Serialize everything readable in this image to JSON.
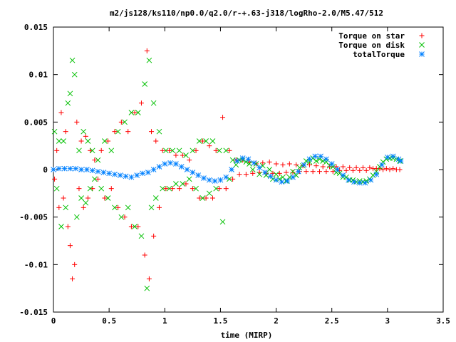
{
  "chart_data": {
    "type": "scatter",
    "title": "m2/js128/ks110/np0.0/q2.0/r-+.63-j318/logRho-2.0/M5.47/512",
    "xlabel": "time (MIRP)",
    "ylabel": "",
    "xlim": [
      0,
      3.5
    ],
    "ylim": [
      -0.015,
      0.015
    ],
    "x_ticks": [
      "0",
      "0.5",
      "1",
      "1.5",
      "2",
      "2.5",
      "3",
      "3.5"
    ],
    "y_ticks": [
      "-0.015",
      "-0.01",
      "-0.005",
      "0",
      "0.005",
      "0.01",
      "0.015"
    ],
    "grid": false,
    "legend_position": "top-right",
    "series": [
      {
        "name": "Torque on star",
        "marker": "plus",
        "color": "#ff0000",
        "points": [
          [
            0.01,
            -0.001
          ],
          [
            0.03,
            0.002
          ],
          [
            0.05,
            -0.004
          ],
          [
            0.07,
            0.006
          ],
          [
            0.09,
            -0.003
          ],
          [
            0.11,
            0.004
          ],
          [
            0.13,
            -0.006
          ],
          [
            0.15,
            -0.008
          ],
          [
            0.17,
            -0.0115
          ],
          [
            0.19,
            -0.01
          ],
          [
            0.21,
            0.005
          ],
          [
            0.23,
            -0.002
          ],
          [
            0.25,
            0.003
          ],
          [
            0.27,
            -0.004
          ],
          [
            0.29,
            0.0035
          ],
          [
            0.31,
            -0.003
          ],
          [
            0.33,
            0.002
          ],
          [
            0.35,
            -0.002
          ],
          [
            0.37,
            0.001
          ],
          [
            0.4,
            -0.001
          ],
          [
            0.43,
            0.002
          ],
          [
            0.46,
            -0.003
          ],
          [
            0.49,
            0.003
          ],
          [
            0.52,
            -0.002
          ],
          [
            0.55,
            0.004
          ],
          [
            0.58,
            -0.004
          ],
          [
            0.61,
            0.005
          ],
          [
            0.64,
            -0.005
          ],
          [
            0.67,
            0.004
          ],
          [
            0.7,
            -0.006
          ],
          [
            0.73,
            0.006
          ],
          [
            0.76,
            -0.006
          ],
          [
            0.79,
            0.007
          ],
          [
            0.82,
            -0.009
          ],
          [
            0.84,
            0.0125
          ],
          [
            0.86,
            -0.0115
          ],
          [
            0.88,
            0.004
          ],
          [
            0.9,
            -0.007
          ],
          [
            0.92,
            0.003
          ],
          [
            0.95,
            -0.004
          ],
          [
            0.98,
            0.002
          ],
          [
            1.01,
            -0.002
          ],
          [
            1.04,
            0.002
          ],
          [
            1.07,
            -0.002
          ],
          [
            1.1,
            0.0015
          ],
          [
            1.13,
            -0.002
          ],
          [
            1.16,
            0.0015
          ],
          [
            1.19,
            -0.0015
          ],
          [
            1.22,
            0.001
          ],
          [
            1.25,
            -0.002
          ],
          [
            1.28,
            0.002
          ],
          [
            1.31,
            -0.003
          ],
          [
            1.34,
            0.003
          ],
          [
            1.37,
            -0.003
          ],
          [
            1.4,
            0.0025
          ],
          [
            1.43,
            -0.003
          ],
          [
            1.46,
            0.002
          ],
          [
            1.49,
            -0.002
          ],
          [
            1.52,
            0.0055
          ],
          [
            1.55,
            -0.002
          ],
          [
            1.58,
            0.002
          ],
          [
            1.61,
            -0.001
          ],
          [
            1.64,
            0.001
          ],
          [
            1.67,
            -0.0005
          ],
          [
            1.7,
            0.001
          ],
          [
            1.73,
            -0.0005
          ],
          [
            1.76,
            0.0008
          ],
          [
            1.79,
            -0.0004
          ],
          [
            1.82,
            0.0006
          ],
          [
            1.85,
            -0.0003
          ],
          [
            1.88,
            0.0007
          ],
          [
            1.91,
            -0.0004
          ],
          [
            1.94,
            0.0008
          ],
          [
            1.97,
            -0.0004
          ],
          [
            2.0,
            0.0006
          ],
          [
            2.03,
            -0.0004
          ],
          [
            2.06,
            0.0005
          ],
          [
            2.09,
            -0.0003
          ],
          [
            2.12,
            0.0006
          ],
          [
            2.15,
            -0.0003
          ],
          [
            2.18,
            0.0005
          ],
          [
            2.21,
            -0.0002
          ],
          [
            2.24,
            0.0004
          ],
          [
            2.27,
            -0.0002
          ],
          [
            2.3,
            0.0005
          ],
          [
            2.33,
            -0.0002
          ],
          [
            2.36,
            0.0004
          ],
          [
            2.39,
            -0.0002
          ],
          [
            2.42,
            0.0003
          ],
          [
            2.45,
            -0.0002
          ],
          [
            2.48,
            0.0003
          ],
          [
            2.51,
            -0.0002
          ],
          [
            2.54,
            0.0003
          ],
          [
            2.57,
            -0.0001
          ],
          [
            2.6,
            0.0003
          ],
          [
            2.63,
            -0.0001
          ],
          [
            2.66,
            0.0002
          ],
          [
            2.69,
            -0.0001
          ],
          [
            2.72,
            0.0002
          ],
          [
            2.75,
            -0.0001
          ],
          [
            2.78,
            0.0002
          ],
          [
            2.81,
            -0.0001
          ],
          [
            2.84,
            0.0002
          ],
          [
            2.87,
            0.0001
          ],
          [
            2.9,
            0.0001
          ],
          [
            2.93,
            0.0001
          ],
          [
            2.96,
            0.0
          ],
          [
            2.99,
            0.0001
          ],
          [
            3.02,
            0.0
          ],
          [
            3.05,
            0.0001
          ],
          [
            3.08,
            0.0
          ],
          [
            3.11,
            0.0
          ]
        ]
      },
      {
        "name": "Torque on disk",
        "marker": "cross",
        "color": "#00c000",
        "points": [
          [
            0.01,
            0.004
          ],
          [
            0.03,
            -0.002
          ],
          [
            0.05,
            0.003
          ],
          [
            0.07,
            -0.006
          ],
          [
            0.09,
            0.003
          ],
          [
            0.11,
            -0.004
          ],
          [
            0.13,
            0.007
          ],
          [
            0.15,
            0.008
          ],
          [
            0.17,
            0.0115
          ],
          [
            0.19,
            0.01
          ],
          [
            0.21,
            -0.005
          ],
          [
            0.23,
            0.002
          ],
          [
            0.25,
            -0.003
          ],
          [
            0.27,
            0.004
          ],
          [
            0.29,
            -0.0035
          ],
          [
            0.31,
            0.003
          ],
          [
            0.33,
            -0.002
          ],
          [
            0.35,
            0.002
          ],
          [
            0.37,
            -0.001
          ],
          [
            0.4,
            0.001
          ],
          [
            0.43,
            -0.002
          ],
          [
            0.46,
            0.003
          ],
          [
            0.49,
            -0.003
          ],
          [
            0.52,
            0.002
          ],
          [
            0.55,
            -0.004
          ],
          [
            0.58,
            0.004
          ],
          [
            0.61,
            -0.005
          ],
          [
            0.64,
            0.005
          ],
          [
            0.67,
            -0.004
          ],
          [
            0.7,
            0.006
          ],
          [
            0.73,
            -0.006
          ],
          [
            0.76,
            0.006
          ],
          [
            0.79,
            -0.007
          ],
          [
            0.82,
            0.009
          ],
          [
            0.84,
            -0.0125
          ],
          [
            0.86,
            0.0115
          ],
          [
            0.88,
            -0.004
          ],
          [
            0.9,
            0.007
          ],
          [
            0.92,
            -0.003
          ],
          [
            0.95,
            0.004
          ],
          [
            0.98,
            -0.002
          ],
          [
            1.01,
            0.002
          ],
          [
            1.04,
            -0.002
          ],
          [
            1.07,
            0.002
          ],
          [
            1.1,
            -0.0015
          ],
          [
            1.13,
            0.002
          ],
          [
            1.16,
            -0.0015
          ],
          [
            1.19,
            0.0015
          ],
          [
            1.22,
            -0.001
          ],
          [
            1.25,
            0.002
          ],
          [
            1.28,
            -0.002
          ],
          [
            1.31,
            0.003
          ],
          [
            1.34,
            -0.003
          ],
          [
            1.37,
            0.003
          ],
          [
            1.4,
            -0.0025
          ],
          [
            1.43,
            0.003
          ],
          [
            1.46,
            -0.002
          ],
          [
            1.49,
            0.002
          ],
          [
            1.52,
            -0.0055
          ],
          [
            1.55,
            0.002
          ],
          [
            1.58,
            -0.001
          ],
          [
            1.61,
            0.001
          ],
          [
            1.64,
            0.0005
          ],
          [
            1.67,
            0.001
          ],
          [
            1.7,
            0.001
          ],
          [
            1.73,
            0.0008
          ],
          [
            1.76,
            0.0006
          ],
          [
            1.79,
            0.0
          ],
          [
            1.82,
            0.0006
          ],
          [
            1.85,
            -0.0005
          ],
          [
            1.88,
            0.0004
          ],
          [
            1.91,
            -0.0006
          ],
          [
            1.94,
            0.0
          ],
          [
            1.97,
            -0.001
          ],
          [
            2.0,
            -0.0005
          ],
          [
            2.03,
            -0.001
          ],
          [
            2.06,
            -0.0008
          ],
          [
            2.09,
            -0.0012
          ],
          [
            2.12,
            -0.0008
          ],
          [
            2.15,
            -0.0002
          ],
          [
            2.18,
            -0.0006
          ],
          [
            2.21,
            0.0002
          ],
          [
            2.24,
            0.0004
          ],
          [
            2.27,
            0.0009
          ],
          [
            2.3,
            0.0008
          ],
          [
            2.33,
            0.0012
          ],
          [
            2.36,
            0.0009
          ],
          [
            2.39,
            0.0011
          ],
          [
            2.42,
            0.0009
          ],
          [
            2.45,
            0.0008
          ],
          [
            2.48,
            0.0004
          ],
          [
            2.51,
            0.0003
          ],
          [
            2.54,
            -0.0003
          ],
          [
            2.57,
            -0.0004
          ],
          [
            2.6,
            -0.0008
          ],
          [
            2.63,
            -0.0008
          ],
          [
            2.66,
            -0.0011
          ],
          [
            2.69,
            -0.0011
          ],
          [
            2.72,
            -0.0013
          ],
          [
            2.75,
            -0.0012
          ],
          [
            2.78,
            -0.0013
          ],
          [
            2.81,
            -0.0012
          ],
          [
            2.84,
            -0.001
          ],
          [
            2.87,
            -0.0006
          ],
          [
            2.9,
            -0.0002
          ],
          [
            2.93,
            0.0003
          ],
          [
            2.96,
            0.0008
          ],
          [
            2.99,
            0.0011
          ],
          [
            3.02,
            0.0012
          ],
          [
            3.05,
            0.0012
          ],
          [
            3.08,
            0.0011
          ],
          [
            3.11,
            0.0009
          ]
        ]
      },
      {
        "name": "totalTorque",
        "marker": "star",
        "color": "#0080ff",
        "points": [
          [
            0.0,
            0.0
          ],
          [
            0.05,
            0.0001
          ],
          [
            0.1,
            0.0001
          ],
          [
            0.15,
            0.0001
          ],
          [
            0.2,
            0.0001
          ],
          [
            0.25,
            0.0
          ],
          [
            0.3,
            0.0
          ],
          [
            0.35,
            -0.0001
          ],
          [
            0.4,
            -0.0002
          ],
          [
            0.45,
            -0.0003
          ],
          [
            0.5,
            -0.0004
          ],
          [
            0.55,
            -0.0005
          ],
          [
            0.6,
            -0.0006
          ],
          [
            0.65,
            -0.0007
          ],
          [
            0.7,
            -0.0008
          ],
          [
            0.75,
            -0.0006
          ],
          [
            0.8,
            -0.0004
          ],
          [
            0.85,
            -0.0003
          ],
          [
            0.9,
            0.0
          ],
          [
            0.95,
            0.0003
          ],
          [
            1.0,
            0.0006
          ],
          [
            1.05,
            0.0007
          ],
          [
            1.1,
            0.0006
          ],
          [
            1.15,
            0.0003
          ],
          [
            1.2,
            0.0
          ],
          [
            1.25,
            -0.0003
          ],
          [
            1.3,
            -0.0006
          ],
          [
            1.35,
            -0.0009
          ],
          [
            1.4,
            -0.0011
          ],
          [
            1.45,
            -0.0012
          ],
          [
            1.5,
            -0.0011
          ],
          [
            1.55,
            -0.0008
          ],
          [
            1.6,
            0.0
          ],
          [
            1.65,
            0.0009
          ],
          [
            1.7,
            0.0012
          ],
          [
            1.75,
            0.0011
          ],
          [
            1.8,
            0.0007
          ],
          [
            1.85,
            0.0002
          ],
          [
            1.9,
            -0.0003
          ],
          [
            1.95,
            -0.0007
          ],
          [
            2.0,
            -0.0011
          ],
          [
            2.05,
            -0.0013
          ],
          [
            2.1,
            -0.0012
          ],
          [
            2.15,
            -0.0008
          ],
          [
            2.2,
            -0.0002
          ],
          [
            2.25,
            0.0005
          ],
          [
            2.3,
            0.0011
          ],
          [
            2.35,
            0.0014
          ],
          [
            2.4,
            0.0014
          ],
          [
            2.45,
            0.0011
          ],
          [
            2.5,
            0.0006
          ],
          [
            2.55,
            0.0
          ],
          [
            2.6,
            -0.0006
          ],
          [
            2.65,
            -0.0011
          ],
          [
            2.7,
            -0.0013
          ],
          [
            2.75,
            -0.0014
          ],
          [
            2.8,
            -0.0014
          ],
          [
            2.85,
            -0.0011
          ],
          [
            2.9,
            -0.0005
          ],
          [
            2.95,
            0.0005
          ],
          [
            3.0,
            0.0013
          ],
          [
            3.05,
            0.0014
          ],
          [
            3.1,
            0.0011
          ],
          [
            3.12,
            0.0009
          ]
        ]
      }
    ]
  }
}
